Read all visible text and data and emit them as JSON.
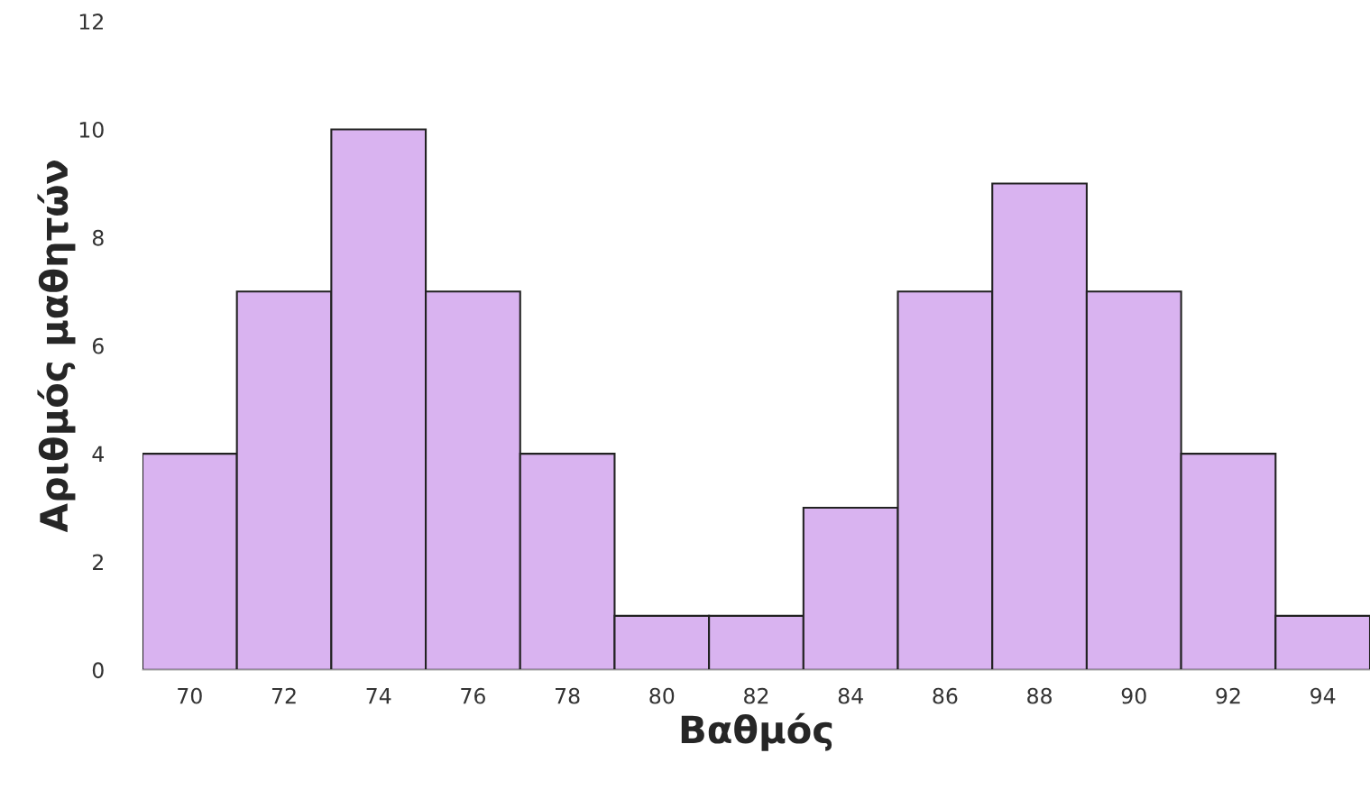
{
  "chart_data": {
    "type": "histogram",
    "xlabel": "Βαθμός",
    "ylabel": "Αριθμός μαθητών",
    "bins": [
      69,
      71,
      73,
      75,
      77,
      79,
      81,
      83,
      85,
      87,
      89,
      91,
      93,
      95
    ],
    "values": [
      4,
      7,
      10,
      7,
      4,
      1,
      1,
      3,
      7,
      9,
      7,
      4,
      1
    ],
    "color": "#d9b3f0",
    "xlim": [
      69,
      95
    ],
    "xticks": [
      70,
      72,
      74,
      76,
      78,
      80,
      82,
      84,
      86,
      88,
      90,
      92,
      94
    ],
    "ylim": [
      0,
      12
    ],
    "yticks": [
      0,
      2,
      4,
      6,
      8,
      10,
      12
    ],
    "grid": false
  }
}
